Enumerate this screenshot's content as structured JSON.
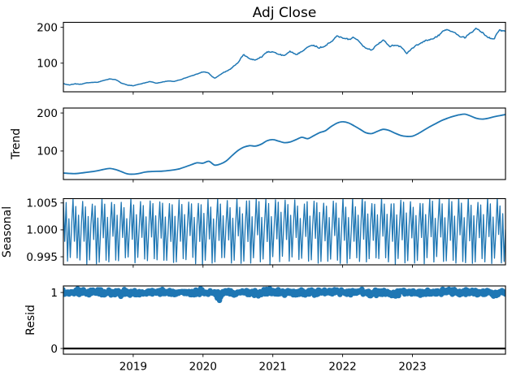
{
  "title": "Adj Close",
  "colors": {
    "series": "#1f77b4",
    "axis": "#000000",
    "background": "#ffffff",
    "resid_zero_line": "#000000"
  },
  "x_axis": {
    "lim": [
      2018.0,
      2024.333
    ],
    "ticks": [
      2019,
      2020,
      2021,
      2022,
      2023
    ],
    "tick_labels": [
      "2019",
      "2020",
      "2021",
      "2022",
      "2023"
    ]
  },
  "panels": [
    {
      "name": "observed",
      "ylabel": "",
      "yticks": [
        100,
        200
      ],
      "ytick_labels": [
        "100",
        "200"
      ],
      "ylim": [
        20,
        214
      ]
    },
    {
      "name": "trend",
      "ylabel": "Trend",
      "yticks": [
        100,
        200
      ],
      "ytick_labels": [
        "100",
        "200"
      ],
      "ylim": [
        25,
        213
      ]
    },
    {
      "name": "seasonal",
      "ylabel": "Seasonal",
      "yticks": [
        0.995,
        1.0,
        1.005
      ],
      "ytick_labels": [
        "0.995",
        "1.000",
        "1.005"
      ],
      "ylim": [
        0.9935,
        1.0058
      ]
    },
    {
      "name": "resid",
      "ylabel": "Resid",
      "yticks": [
        0,
        1
      ],
      "ytick_labels": [
        "0",
        "1"
      ],
      "ylim": [
        -0.102,
        1.117
      ]
    }
  ],
  "chart_data": {
    "type": "line",
    "subtype": "seasonal_decomposition_multiplicative",
    "title": "Adj Close",
    "x_start": 2018.0,
    "x_step": 0.0833333,
    "observed": {
      "label": "Adj Close",
      "values": [
        43,
        39,
        42,
        41,
        45,
        46,
        47,
        52,
        56,
        54,
        44,
        39,
        37,
        41,
        45,
        49,
        44,
        47,
        50,
        49,
        53,
        59,
        64,
        70,
        76,
        72,
        57,
        69,
        77,
        87,
        101,
        124,
        112,
        110,
        117,
        131,
        132,
        124,
        121,
        132,
        124,
        134,
        146,
        151,
        142,
        149,
        160,
        177,
        172,
        165,
        172,
        158,
        143,
        137,
        153,
        166,
        147,
        151,
        146,
        127,
        143,
        151,
        160,
        166,
        172,
        185,
        193,
        186,
        176,
        170,
        186,
        196,
        184,
        173,
        168,
        193,
        189
      ],
      "noise_seed": 1234,
      "noise_amp": 0.02
    },
    "trend": {
      "label": "Trend",
      "values": [
        42,
        41,
        40.5,
        42,
        44,
        46,
        48.5,
        52,
        54,
        51,
        45.5,
        40,
        39,
        41,
        44.5,
        46,
        46.5,
        47,
        48.5,
        50.5,
        53.5,
        58.5,
        64,
        69,
        68,
        73,
        63,
        66,
        74,
        88,
        101,
        110,
        114,
        113,
        118,
        127,
        130,
        126,
        122,
        124,
        130,
        136,
        132.5,
        140,
        148,
        153,
        164,
        173,
        177,
        174,
        166,
        157,
        148,
        146,
        152,
        157,
        154,
        147,
        141,
        138.5,
        139,
        146,
        155,
        164,
        172,
        180,
        186,
        191,
        195,
        197,
        192,
        186,
        184,
        186,
        190,
        193,
        196
      ]
    },
    "seasonal": {
      "label": "Seasonal",
      "min": 0.9942,
      "max": 1.0055,
      "display_cycle": [
        1.0054,
        0.9985,
        1.0048,
        0.9942,
        1.0026,
        0.9944,
        1.0004
      ],
      "samples": 322,
      "jitter": 0.0007,
      "noise_seed": 77
    },
    "resid": {
      "label": "Resid",
      "center": 1.0,
      "spread": 0.045,
      "n_points": 760,
      "marker_radius": 3.3,
      "noise_seed": 99,
      "zero_line": 0,
      "outlier_regions": [
        {
          "x": 2020.22,
          "dy": -0.22,
          "halfwidth": 0.06
        },
        {
          "x": 2018.35,
          "dy": -0.05,
          "halfwidth": 0.05
        },
        {
          "x": 2019.0,
          "dy": -0.05,
          "halfwidth": 0.06
        },
        {
          "x": 2021.55,
          "dy": 0.06,
          "halfwidth": 0.05
        },
        {
          "x": 2022.75,
          "dy": -0.09,
          "halfwidth": 0.07
        }
      ]
    }
  }
}
